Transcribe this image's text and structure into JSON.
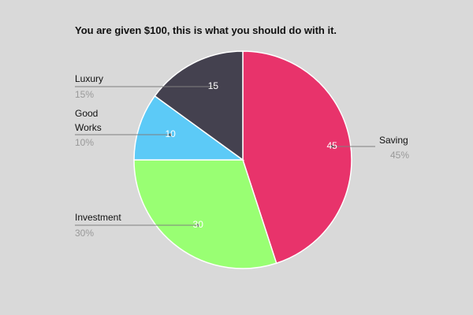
{
  "chart_data": {
    "type": "pie",
    "title": "You are given $100, this is what you should do with it.",
    "slices": [
      {
        "name": "Saving",
        "value": 45,
        "value_label": "45",
        "percent_label": "45%",
        "color": "#e8336b",
        "label_side": "right"
      },
      {
        "name": "Investment",
        "value": 30,
        "value_label": "30",
        "percent_label": "30%",
        "color": "#99ff73",
        "label_side": "left"
      },
      {
        "name": "Good Works",
        "name_lines": [
          "Good",
          "Works"
        ],
        "value": 10,
        "value_label": "10",
        "percent_label": "10%",
        "color": "#5ccaf7",
        "label_side": "left"
      },
      {
        "name": "Luxury",
        "value": 15,
        "value_label": "15",
        "percent_label": "15%",
        "color": "#44414f",
        "label_side": "left"
      }
    ],
    "legend_placement": "outside-labels",
    "start_angle": "top",
    "direction": "clockwise"
  },
  "colors": {
    "background": "#d9d9d9",
    "slice_border": "#ffffff"
  }
}
